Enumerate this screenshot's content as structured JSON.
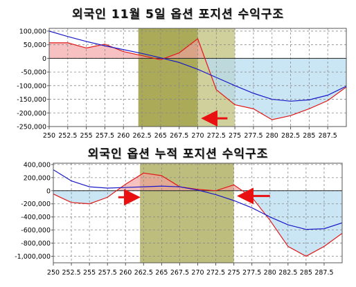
{
  "chart_data": [
    {
      "type": "area",
      "title": "외국인 11월 5일 옵션 포지션 수익구조",
      "x_ticks": [
        "250",
        "252.5",
        "255",
        "257.5",
        "260",
        "262.5",
        "265",
        "267.5",
        "270",
        "272.5",
        "275",
        "277.5",
        "280",
        "282.5",
        "285",
        "287.5"
      ],
      "y_ticks": [
        "100,000",
        "50,000",
        "0",
        "-50,000",
        "-100,000",
        "-150,000",
        "-200,000",
        "-250,000"
      ],
      "xlim": [
        250,
        290
      ],
      "ylim": [
        -250000,
        110000
      ],
      "grid": true,
      "highlight_bands": [
        {
          "x": [
            262,
            270
          ],
          "color": "#9b9b3c"
        },
        {
          "x": [
            270,
            275
          ],
          "color": "#c8c88c"
        }
      ],
      "arrows": [
        {
          "from_x": 274,
          "to_x": 271,
          "y": -220000,
          "color": "#e81010"
        }
      ],
      "series": [
        {
          "color_line": "#e01818",
          "color_pos_fill": "#f2a0a0",
          "color_neg_fill": "#b8dcf0",
          "x": [
            250,
            252.5,
            255,
            257.5,
            260,
            262.5,
            265,
            267.5,
            270,
            272.5,
            275,
            277.5,
            280,
            282.5,
            285,
            287.5,
            290
          ],
          "y": [
            57000,
            57000,
            38000,
            52000,
            25000,
            10000,
            -5000,
            20000,
            72000,
            -115000,
            -170000,
            -185000,
            -225000,
            -210000,
            -185000,
            -155000,
            -105000
          ]
        },
        {
          "color_line": "#1818c8",
          "x": [
            250,
            252.5,
            255,
            257.5,
            260,
            262.5,
            265,
            267.5,
            270,
            272.5,
            275,
            277.5,
            280,
            282.5,
            285,
            287.5,
            290
          ],
          "y": [
            100000,
            80000,
            62000,
            46000,
            32000,
            18000,
            2000,
            -15000,
            -40000,
            -70000,
            -100000,
            -128000,
            -150000,
            -157000,
            -152000,
            -135000,
            -102000
          ]
        }
      ]
    },
    {
      "type": "area",
      "title": "외국인 옵션 누적 포지션 수익구조",
      "x_ticks": [
        "250",
        "252.5",
        "255",
        "257.5",
        "260",
        "262.5",
        "265",
        "267.5",
        "270",
        "272.5",
        "275",
        "277.5",
        "280",
        "282.5",
        "285",
        "287.5"
      ],
      "y_ticks": [
        "400,000",
        "200,000",
        "0",
        "-200,000",
        "-400,000",
        "-600,000",
        "-800,000",
        "-1,000,000"
      ],
      "xlim": [
        250,
        290
      ],
      "ylim": [
        -1100000,
        420000
      ],
      "grid": true,
      "highlight_bands": [
        {
          "x": [
            262,
            275
          ],
          "color": "#b2b266"
        }
      ],
      "arrows": [
        {
          "from_x": 259,
          "to_x": 261.5,
          "y": -100000,
          "color": "#e81010"
        },
        {
          "from_x": 280,
          "to_x": 276,
          "y": -80000,
          "color": "#e81010"
        }
      ],
      "series": [
        {
          "color_line": "#e01818",
          "color_pos_fill": "#f2a0a0",
          "color_neg_fill": "#b8dcf0",
          "x": [
            250,
            252.5,
            255,
            257.5,
            260,
            262.5,
            265,
            267.5,
            270,
            272.5,
            275,
            277.5,
            280,
            282.5,
            285,
            287.5,
            290
          ],
          "y": [
            -50000,
            -180000,
            -200000,
            -100000,
            100000,
            270000,
            230000,
            60000,
            20000,
            0,
            90000,
            -100000,
            -450000,
            -850000,
            -1000000,
            -850000,
            -650000
          ]
        },
        {
          "color_line": "#1818c8",
          "x": [
            250,
            252.5,
            255,
            257.5,
            260,
            262.5,
            265,
            267.5,
            270,
            272.5,
            275,
            277.5,
            280,
            282.5,
            285,
            287.5,
            290
          ],
          "y": [
            320000,
            150000,
            60000,
            40000,
            50000,
            60000,
            70000,
            60000,
            10000,
            -60000,
            -150000,
            -260000,
            -400000,
            -520000,
            -590000,
            -580000,
            -490000
          ]
        }
      ]
    }
  ]
}
